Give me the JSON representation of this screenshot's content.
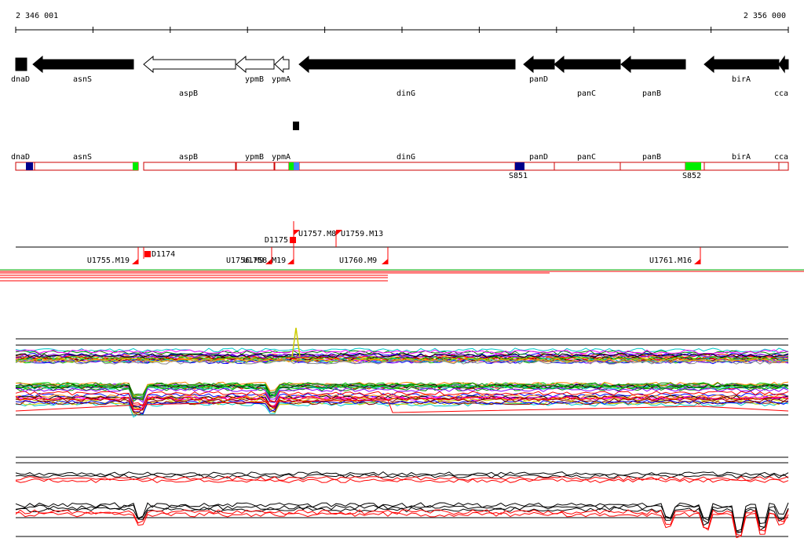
{
  "ruler": {
    "start_label": "2 346 001",
    "end_label": "2 356 000"
  },
  "genes_track": [
    {
      "name": "dnaD",
      "strand": "-",
      "fill": "black",
      "label_row": 1
    },
    {
      "name": "asnS",
      "strand": "-",
      "fill": "black",
      "label_row": 1
    },
    {
      "name": "aspB",
      "strand": "-",
      "fill": "white",
      "label_row": 2
    },
    {
      "name": "ypmB",
      "strand": "-",
      "fill": "white",
      "label_row": 1
    },
    {
      "name": "ypmA",
      "strand": "-",
      "fill": "white",
      "label_row": 1
    },
    {
      "name": "dinG",
      "strand": "-",
      "fill": "black",
      "label_row": 2
    },
    {
      "name": "panD",
      "strand": "-",
      "fill": "black",
      "label_row": 1
    },
    {
      "name": "panC",
      "strand": "-",
      "fill": "black",
      "label_row": 2
    },
    {
      "name": "panB",
      "strand": "-",
      "fill": "black",
      "label_row": 2
    },
    {
      "name": "birA",
      "strand": "-",
      "fill": "black",
      "label_row": 1
    },
    {
      "name": "cca",
      "strand": "-",
      "fill": "black",
      "label_row": 2
    }
  ],
  "segments_track": {
    "labels": [
      "dnaD",
      "asnS",
      "aspB",
      "ypmB",
      "ypmA",
      "dinG",
      "panD",
      "panC",
      "panB",
      "birA",
      "cca"
    ],
    "markers": [
      {
        "name": "S851",
        "color": "#00008b"
      },
      {
        "name": "S852",
        "color": "#00ee00"
      }
    ],
    "colors": {
      "outline": "#cc0000",
      "dark_blue": "#00008b",
      "green": "#00ee00",
      "blue": "#4488ff"
    }
  },
  "transcripts_track": {
    "up_labels": [
      "U1757.M8",
      "U1759.M13",
      "D1175"
    ],
    "down_labels": [
      "U1755.M19",
      "D1174",
      "U1756.M9",
      "U1758.M19",
      "U1760.M9",
      "U1761.M16"
    ],
    "flag_color": "#ff0000"
  },
  "line_colors": [
    "#ff0000",
    "#00cc00",
    "#0000ff",
    "#ff00ff",
    "#00cccc",
    "#cccc00",
    "#ff8800",
    "#8800ff",
    "#888888",
    "#000000",
    "#008800",
    "#880000"
  ]
}
